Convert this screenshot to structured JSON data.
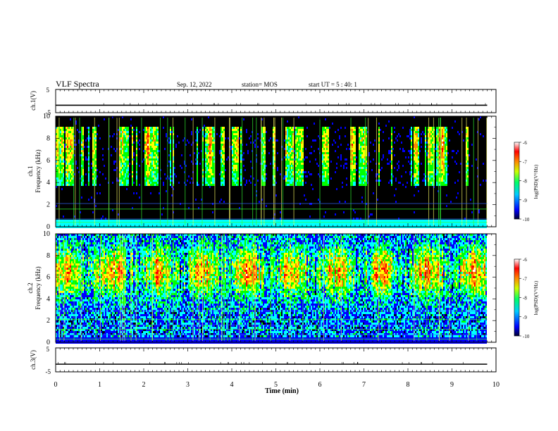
{
  "header": {
    "title": "VLF Spectra",
    "date": "Sep. 12, 2022",
    "station": "station= MOS",
    "start": "start  UT =   5 : 40: 1"
  },
  "colors": {
    "black_bg": "#000000",
    "colormap": [
      "#000033",
      "#0000ff",
      "#00ffff",
      "#00ff00",
      "#ffff00",
      "#ff8800",
      "#ff0000",
      "#ffffff"
    ],
    "line_green": "#33ff33",
    "line_blue": "#3366ff"
  },
  "chart_data": [
    {
      "type": "line",
      "name": "ch1-voltage",
      "ylabel": "ch.1(V)",
      "ylim": [
        -5,
        5
      ],
      "yticks": [
        "5",
        "-5"
      ],
      "x": [
        0,
        9.8
      ],
      "values": [
        -1.8,
        -1.8
      ]
    },
    {
      "type": "heatmap",
      "name": "ch1-spectrogram",
      "ylabel": "ch.1\nFrequency (kHz)",
      "ylim": [
        0,
        10
      ],
      "yticks": [
        "0",
        "2",
        "4",
        "6",
        "8",
        "10"
      ],
      "xlim": [
        0,
        10
      ],
      "data_extent_min": 9.8,
      "colorbar": {
        "label": "log(PSD)(V²/Hz)",
        "ticks": [
          "-6",
          "-7",
          "-8",
          "-9",
          "-10"
        ],
        "range": [
          -10,
          -6
        ]
      },
      "band_kHz": [
        3.7,
        9.0
      ],
      "intensity_profile": "broadband-bursts"
    },
    {
      "type": "heatmap",
      "name": "ch2-spectrogram",
      "ylabel": "ch.2\nFrequency (kHz)",
      "ylim": [
        0,
        10
      ],
      "yticks": [
        "0",
        "2",
        "4",
        "6",
        "8",
        "10"
      ],
      "xlim": [
        0,
        10
      ],
      "data_extent_min": 9.8,
      "colorbar": {
        "label": "log(PSD)(V²/Hz)",
        "ticks": [
          "-6",
          "-7",
          "-8",
          "-9",
          "-10"
        ],
        "range": [
          -10,
          -6
        ]
      },
      "band_kHz": [
        0.5,
        10
      ],
      "peak_kHz": 6.5,
      "intensity_profile": "continuous-hiss"
    },
    {
      "type": "line",
      "name": "ch3-voltage",
      "ylabel": "ch.3(V)",
      "ylim": [
        -5,
        5
      ],
      "yticks": [
        "5",
        "-5"
      ],
      "x": [
        0,
        9.8
      ],
      "values": [
        -1.8,
        -1.8
      ]
    }
  ],
  "x_axis": {
    "label": "Time (min)",
    "ticks": [
      "0",
      "1",
      "2",
      "3",
      "4",
      "5",
      "6",
      "7",
      "8",
      "9",
      "10"
    ],
    "range": [
      0,
      10
    ]
  }
}
